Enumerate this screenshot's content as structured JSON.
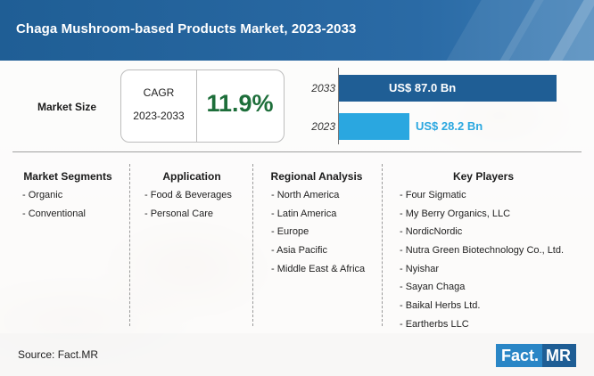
{
  "header": {
    "title": "Chaga Mushroom-based Products Market, 2023-2033"
  },
  "market_size": {
    "label": "Market Size",
    "cagr_label": "CAGR",
    "cagr_period": "2023-2033",
    "cagr_value": "11.9%"
  },
  "chart_data": {
    "type": "bar",
    "orientation": "horizontal",
    "categories": [
      "2033",
      "2023"
    ],
    "values": [
      87.0,
      28.2
    ],
    "value_labels": [
      "US$ 87.0 Bn",
      "US$ 28.2 Bn"
    ],
    "unit": "US$ Bn",
    "colors": [
      "#1f5e95",
      "#2aa7e0"
    ],
    "xlim": [
      0,
      87.0
    ]
  },
  "columns": [
    {
      "heading": "Market Segments",
      "items": [
        "- Organic",
        "- Conventional"
      ]
    },
    {
      "heading": "Application",
      "items": [
        "- Food & Beverages",
        "- Personal Care"
      ]
    },
    {
      "heading": "Regional Analysis",
      "items": [
        "- North America",
        "- Latin America",
        "- Europe",
        "- Asia Pacific",
        "- Middle East & Africa"
      ]
    },
    {
      "heading": "Key Players",
      "items": [
        "- Four Sigmatic",
        "- My Berry Organics, LLC",
        "- NordicNordic",
        "- Nutra Green Biotechnology Co., Ltd.",
        "- Nyishar",
        "- Sayan Chaga",
        "- Baikal Herbs Ltd.",
        "- Eartherbs LLC"
      ]
    }
  ],
  "footer": {
    "source": "Source: Fact.MR",
    "logo_part1": "Fact.",
    "logo_part2": "MR"
  },
  "colors": {
    "header_blue": "#1f5e95",
    "cagr_green": "#1d6e3a",
    "bar_2033": "#1f5e95",
    "bar_2023": "#2aa7e0"
  }
}
